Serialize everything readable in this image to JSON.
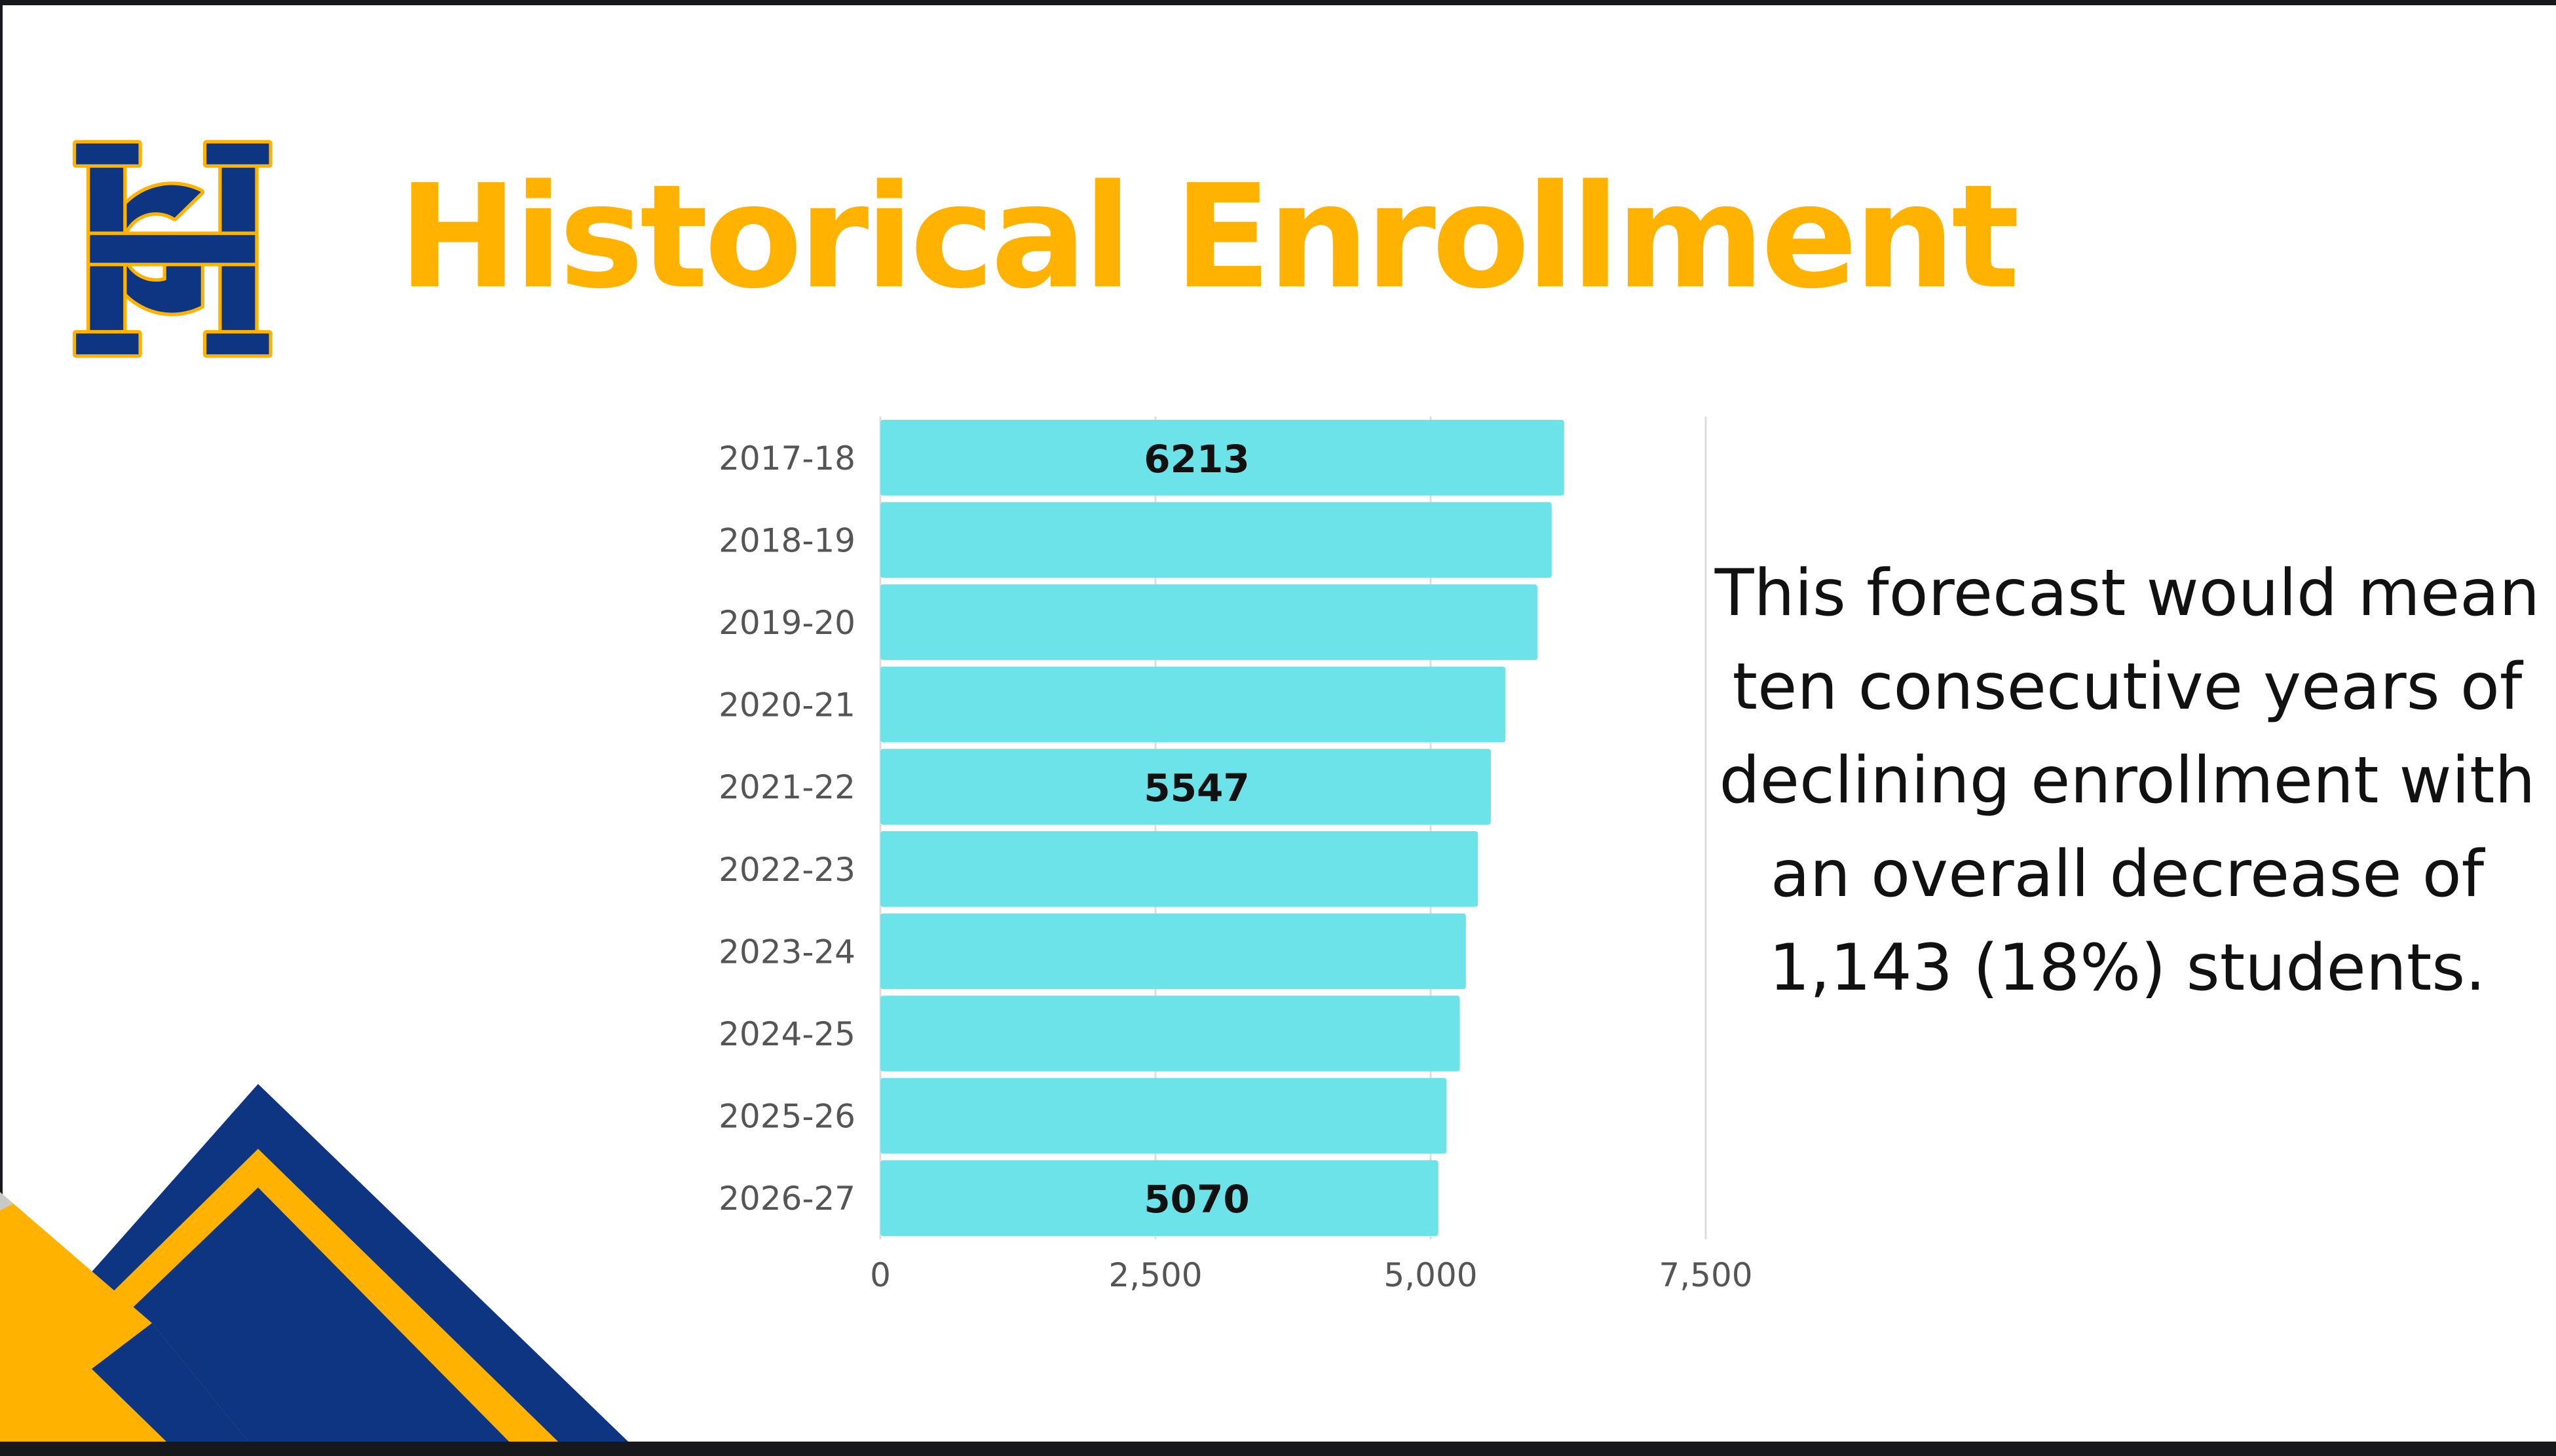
{
  "slide": {
    "title": "Historical Enrollment",
    "note": "This forecast would mean ten consecutive years of declining enrollment with an overall decrease of 1,143 (18%) students.",
    "colors": {
      "title": "#FFB300",
      "bar": "#6BE3E8",
      "navy": "#0D3582",
      "gold": "#FFB300"
    },
    "logo_icon": "hg-monogram-logo",
    "decoration_icon": "corner-triangles"
  },
  "chart_data": {
    "type": "bar",
    "orientation": "horizontal",
    "categories": [
      "2017-18",
      "2018-19",
      "2019-20",
      "2020-21",
      "2021-22",
      "2022-23",
      "2023-24",
      "2024-25",
      "2025-26",
      "2026-27"
    ],
    "values": [
      6213,
      6100,
      5970,
      5680,
      5547,
      5430,
      5320,
      5265,
      5145,
      5070
    ],
    "data_labels": {
      "2017-18": "6213",
      "2021-22": "5547",
      "2026-27": "5070"
    },
    "xlim": [
      0,
      7500
    ],
    "xticks": [
      0,
      2500,
      5000,
      7500
    ],
    "xtick_labels": [
      "0",
      "2,500",
      "5,000",
      "7,500"
    ],
    "grid": true,
    "xlabel": "",
    "ylabel": ""
  }
}
